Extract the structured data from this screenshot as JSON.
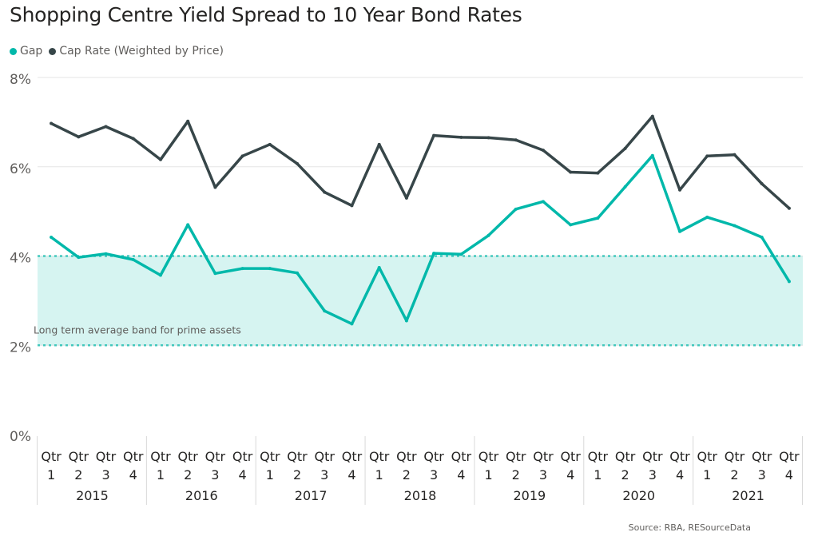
{
  "chart_data": {
    "type": "line",
    "title": "Shopping Centre Yield Spread to 10 Year Bond Rates",
    "quarters": [
      "Qtr 1",
      "Qtr 2",
      "Qtr 3",
      "Qtr 4",
      "Qtr 1",
      "Qtr 2",
      "Qtr 3",
      "Qtr 4",
      "Qtr 1",
      "Qtr 2",
      "Qtr 3",
      "Qtr 4",
      "Qtr 1",
      "Qtr 2",
      "Qtr 3",
      "Qtr 4",
      "Qtr 1",
      "Qtr 2",
      "Qtr 3",
      "Qtr 4",
      "Qtr 1",
      "Qtr 2",
      "Qtr 3",
      "Qtr 4",
      "Qtr 1",
      "Qtr 2",
      "Qtr 3",
      "Qtr 4"
    ],
    "years": [
      "2015",
      "2016",
      "2017",
      "2018",
      "2019",
      "2020",
      "2021"
    ],
    "y_ticks": [
      "0%",
      "2%",
      "4%",
      "6%",
      "8%"
    ],
    "ylim": [
      0,
      8
    ],
    "grid": true,
    "legend_position": "top-left",
    "series": [
      {
        "name": "Gap",
        "color": "#01b8aa",
        "values": [
          4.42,
          3.97,
          4.05,
          3.92,
          3.57,
          4.7,
          3.61,
          3.72,
          3.72,
          3.62,
          2.77,
          2.48,
          3.74,
          2.55,
          4.06,
          4.04,
          4.46,
          5.05,
          5.22,
          4.7,
          4.85,
          5.55,
          6.25,
          4.55,
          4.87,
          4.68,
          4.42,
          3.43
        ]
      },
      {
        "name": "Cap Rate (Weighted by Price)",
        "color": "#374649",
        "values": [
          6.97,
          6.67,
          6.9,
          6.63,
          6.16,
          7.02,
          5.54,
          6.24,
          6.5,
          6.07,
          5.43,
          5.13,
          6.5,
          5.3,
          6.7,
          6.66,
          6.65,
          6.6,
          6.37,
          5.88,
          5.86,
          6.41,
          7.13,
          5.48,
          6.24,
          6.27,
          5.62,
          5.07
        ]
      }
    ],
    "band": {
      "low": 2,
      "high": 4,
      "label": "Long term average band for prime assets",
      "color": "#01b8aa"
    },
    "source": "Source: RBA, RESourceData"
  }
}
